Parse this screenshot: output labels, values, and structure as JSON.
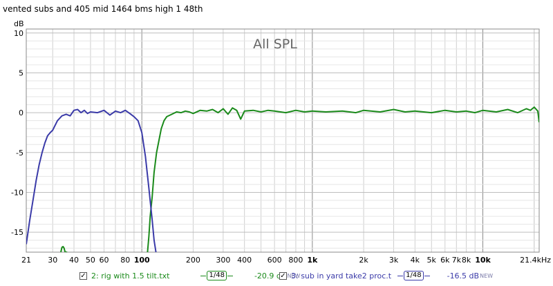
{
  "window_title": "vented subs and 405 mid 1464 bms high 1 48th",
  "chart_data": {
    "type": "line",
    "title": "All SPL",
    "ylabel": "dB",
    "xlabel": "",
    "x_scale": "log",
    "xlim": [
      21,
      21400
    ],
    "ylim": [
      -17.5,
      10.5
    ],
    "x_ticks": [
      {
        "v": 21,
        "label": "21"
      },
      {
        "v": 30,
        "label": "30"
      },
      {
        "v": 40,
        "label": "40"
      },
      {
        "v": 50,
        "label": "50"
      },
      {
        "v": 60,
        "label": "60"
      },
      {
        "v": 80,
        "label": "80"
      },
      {
        "v": 100,
        "label": "100"
      },
      {
        "v": 200,
        "label": "200"
      },
      {
        "v": 300,
        "label": "300"
      },
      {
        "v": 400,
        "label": "400"
      },
      {
        "v": 600,
        "label": "600"
      },
      {
        "v": 800,
        "label": "800"
      },
      {
        "v": 1000,
        "label": "1k"
      },
      {
        "v": 2000,
        "label": "2k"
      },
      {
        "v": 3000,
        "label": "3k"
      },
      {
        "v": 4000,
        "label": "4k"
      },
      {
        "v": 5000,
        "label": "5k"
      },
      {
        "v": 6000,
        "label": "6k"
      },
      {
        "v": 7000,
        "label": "7k"
      },
      {
        "v": 8000,
        "label": "8k"
      },
      {
        "v": 10000,
        "label": "10k"
      },
      {
        "v": 21400,
        "label": "21.4kHz"
      }
    ],
    "y_ticks": [
      {
        "v": 10,
        "label": "10"
      },
      {
        "v": 5,
        "label": "5"
      },
      {
        "v": 0,
        "label": "0"
      },
      {
        "v": -5,
        "label": "-5"
      },
      {
        "v": -10,
        "label": "-10"
      },
      {
        "v": -15,
        "label": "-15"
      }
    ],
    "grid": true,
    "series": [
      {
        "name": "2: rig with 1.5 tilt.txt",
        "color": "#1a8a1a",
        "x": [
          33.5,
          34,
          34.5,
          35,
          35.5,
          36,
          36.5,
          108,
          110,
          112,
          115,
          118,
          122,
          126,
          130,
          135,
          140,
          150,
          160,
          170,
          180,
          190,
          200,
          220,
          240,
          260,
          280,
          300,
          320,
          340,
          360,
          380,
          400,
          450,
          500,
          550,
          600,
          700,
          800,
          900,
          1000,
          1200,
          1500,
          1800,
          2000,
          2500,
          3000,
          3500,
          4000,
          5000,
          6000,
          7000,
          8000,
          9000,
          10000,
          12000,
          14000,
          16000,
          18000,
          19000,
          20000,
          21000,
          21400
        ],
        "y": [
          -17.5,
          -16.9,
          -16.8,
          -17.0,
          -17.5,
          -17.5,
          -17.5,
          -17.5,
          -15.5,
          -13.0,
          -10.5,
          -7.5,
          -5.0,
          -3.5,
          -2.0,
          -1.0,
          -0.5,
          -0.2,
          0.1,
          0.0,
          0.2,
          0.1,
          -0.1,
          0.3,
          0.2,
          0.4,
          0.0,
          0.5,
          -0.2,
          0.6,
          0.3,
          -0.8,
          0.2,
          0.3,
          0.1,
          0.3,
          0.2,
          0.0,
          0.3,
          0.1,
          0.2,
          0.1,
          0.2,
          0.0,
          0.3,
          0.1,
          0.4,
          0.1,
          0.2,
          0.0,
          0.3,
          0.1,
          0.2,
          0.0,
          0.3,
          0.1,
          0.4,
          0.0,
          0.5,
          0.3,
          0.7,
          0.2,
          -1.2
        ]
      },
      {
        "name": "3: sub in yard take2 proc.t",
        "color": "#3a3aa8",
        "x": [
          21,
          22,
          23,
          24,
          25,
          26,
          27,
          28,
          29,
          30,
          32,
          34,
          36,
          38,
          40,
          42,
          44,
          46,
          48,
          50,
          55,
          60,
          65,
          70,
          75,
          80,
          85,
          90,
          95,
          100,
          105,
          110,
          115,
          118,
          121
        ],
        "y": [
          -16.5,
          -13.5,
          -11.0,
          -8.5,
          -6.5,
          -5.0,
          -3.8,
          -2.9,
          -2.5,
          -2.2,
          -1.0,
          -0.4,
          -0.2,
          -0.4,
          0.3,
          0.4,
          0.0,
          0.3,
          -0.1,
          0.1,
          0.0,
          0.3,
          -0.3,
          0.2,
          0.0,
          0.3,
          -0.1,
          -0.5,
          -1.0,
          -2.5,
          -5.5,
          -9.5,
          -13.5,
          -16.0,
          -17.5
        ]
      }
    ]
  },
  "legend": {
    "items": [
      {
        "check": "✓",
        "label": "2: rig with 1.5 tilt.txt",
        "smoothing": "1/48",
        "level": "-20.9 dB",
        "badge": "NEW",
        "color": "#1a8a1a"
      },
      {
        "check": "✓",
        "label": "3: sub in yard take2 proc.t",
        "smoothing": "1/48",
        "level": "-16.5 dB",
        "badge": "NEW",
        "color": "#3a3aa8"
      }
    ]
  }
}
